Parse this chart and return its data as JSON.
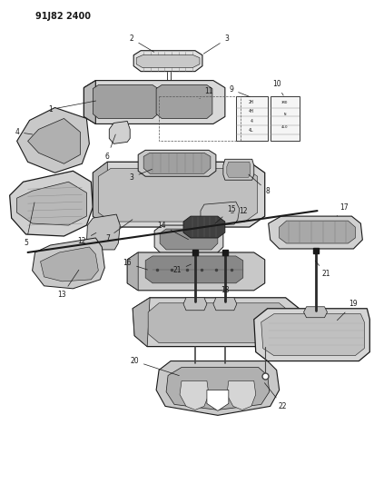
{
  "title": "91J82 2400",
  "bg": "#ffffff",
  "lc": "#1a1a1a",
  "fig_w": 4.12,
  "fig_h": 5.33,
  "dpi": 100,
  "gear_labels_9": [
    "2H",
    "4H",
    "4",
    "4L"
  ],
  "gear_labels_10": [
    "3RD",
    "N",
    "4LO"
  ]
}
